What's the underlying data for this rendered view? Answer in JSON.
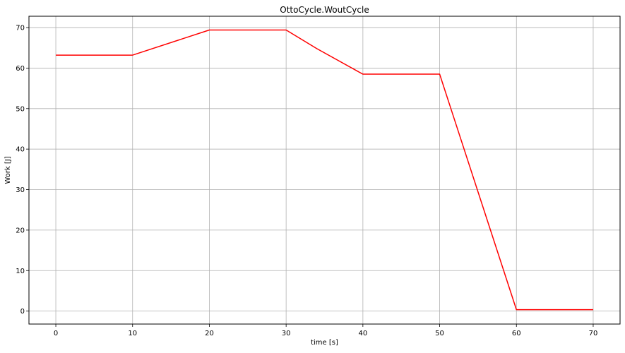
{
  "chart_data": {
    "type": "line",
    "title": "OttoCycle.WoutCycle",
    "xlabel": "time [s]",
    "ylabel": "Work [J]",
    "xlim": [
      -3.5,
      73.5
    ],
    "ylim": [
      -3.2,
      72.8
    ],
    "x_ticks": [
      0,
      10,
      20,
      30,
      40,
      50,
      60,
      70
    ],
    "y_ticks": [
      0,
      10,
      20,
      30,
      40,
      50,
      60,
      70
    ],
    "x_tick_labels": [
      "0",
      "10",
      "20",
      "30",
      "40",
      "50",
      "60",
      "70"
    ],
    "y_tick_labels": [
      "0",
      "10",
      "20",
      "30",
      "40",
      "50",
      "60",
      "70"
    ],
    "grid": true,
    "series": [
      {
        "color": "#ff0000",
        "x": [
          0,
          10,
          20,
          30,
          34,
          40,
          50,
          60,
          70
        ],
        "y": [
          63.2,
          63.2,
          69.4,
          69.4,
          64.8,
          58.5,
          58.5,
          0.35,
          0.35
        ]
      }
    ]
  }
}
